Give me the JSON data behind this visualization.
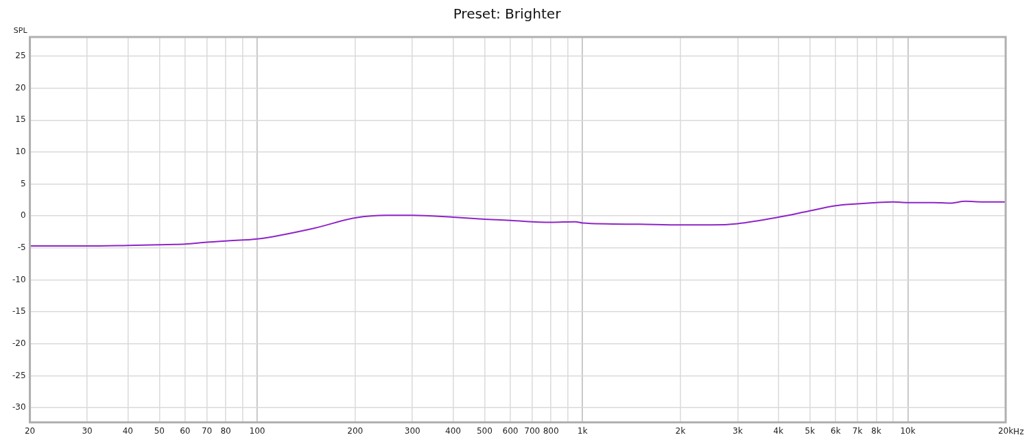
{
  "chart_data": {
    "type": "line",
    "title": "Preset: Brighter",
    "ylabel": "SPL",
    "xlabel": "Hz",
    "x": [
      20,
      30,
      40,
      50,
      60,
      70,
      80,
      100,
      150,
      200,
      250,
      300,
      400,
      500,
      600,
      800,
      950,
      1000,
      1500,
      2000,
      2500,
      3000,
      4000,
      5000,
      6000,
      7000,
      8000,
      9000,
      10000,
      12000,
      13500,
      15000,
      17000,
      20000
    ],
    "series": [
      {
        "color": "#8e24c8",
        "values": [
          -4.7,
          -4.7,
          -4.6,
          -4.5,
          -4.4,
          -4.1,
          -3.9,
          -3.6,
          -1.9,
          -0.3,
          0.1,
          0.1,
          -0.2,
          -0.5,
          -0.7,
          -1.0,
          -0.9,
          -1.1,
          -1.3,
          -1.4,
          -1.4,
          -1.2,
          -0.2,
          0.8,
          1.6,
          1.9,
          2.1,
          2.2,
          2.1,
          2.1,
          2.0,
          2.3,
          2.2,
          2.2
        ]
      }
    ],
    "log": "x",
    "xlim": [
      20,
      20000
    ],
    "ylim": [
      -32.3,
      28
    ],
    "xticks": [
      20,
      30,
      40,
      50,
      60,
      70,
      80,
      {
        "value": 90,
        "label": null
      },
      100,
      200,
      300,
      400,
      500,
      600,
      700,
      800,
      {
        "value": 900,
        "label": null
      },
      {
        "value": 1000,
        "label": "1k"
      },
      {
        "value": 2000,
        "label": "2k"
      },
      {
        "value": 3000,
        "label": "3k"
      },
      {
        "value": 4000,
        "label": "4k"
      },
      {
        "value": 5000,
        "label": "5k"
      },
      {
        "value": 6000,
        "label": "6k"
      },
      {
        "value": 7000,
        "label": "7k"
      },
      {
        "value": 8000,
        "label": "8k"
      },
      {
        "value": 9000,
        "label": null
      },
      {
        "value": 10000,
        "label": "10k"
      },
      {
        "value": 20000,
        "label": "20k"
      }
    ],
    "yticks": [
      -30,
      -25,
      -20,
      -15,
      -10,
      -5,
      0,
      5,
      10,
      15,
      20,
      25
    ],
    "grid": true,
    "legend": false,
    "marker": "none",
    "line_style": "solid"
  }
}
